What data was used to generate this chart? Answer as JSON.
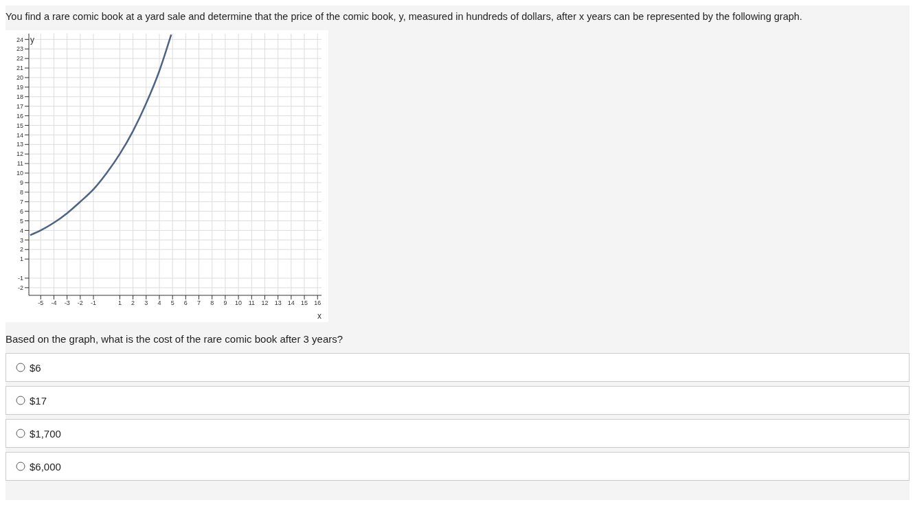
{
  "chart_data": {
    "type": "line",
    "title": "You find a rare comic book at a yard sale and determine that the price of the comic book, y, measured in hundreds of dollars, after x years can be represented by the following graph.",
    "xlabel": "x",
    "ylabel": "y",
    "x": [
      -5.8,
      -5,
      -4,
      -3,
      -2,
      -1,
      0,
      1,
      2,
      3,
      4,
      4.9
    ],
    "series": [
      {
        "color": "#4f6485",
        "values": [
          3.5,
          4,
          4.8,
          5.8,
          7,
          8.3,
          10,
          12,
          14.4,
          17.3,
          20.7,
          24.5
        ]
      }
    ],
    "xlim": [
      -5.9,
      16.3
    ],
    "ylim": [
      -2.8,
      24.6
    ],
    "xticks": [
      -5,
      -4,
      -3,
      -2,
      -1,
      1,
      2,
      3,
      4,
      5,
      6,
      7,
      8,
      9,
      10,
      11,
      12,
      13,
      14,
      15,
      16
    ],
    "yticks": [
      -2,
      -1,
      1,
      2,
      3,
      4,
      5,
      6,
      7,
      8,
      9,
      10,
      11,
      12,
      13,
      14,
      15,
      16,
      17,
      18,
      19,
      20,
      21,
      22,
      23,
      24
    ],
    "grid": true,
    "marker": "none",
    "line_style": "solid",
    "annotations": [
      "Based on the graph, what is the cost of the rare comic book after 3 years?",
      "$6",
      "$17",
      "$1,700",
      "$6,000"
    ]
  }
}
